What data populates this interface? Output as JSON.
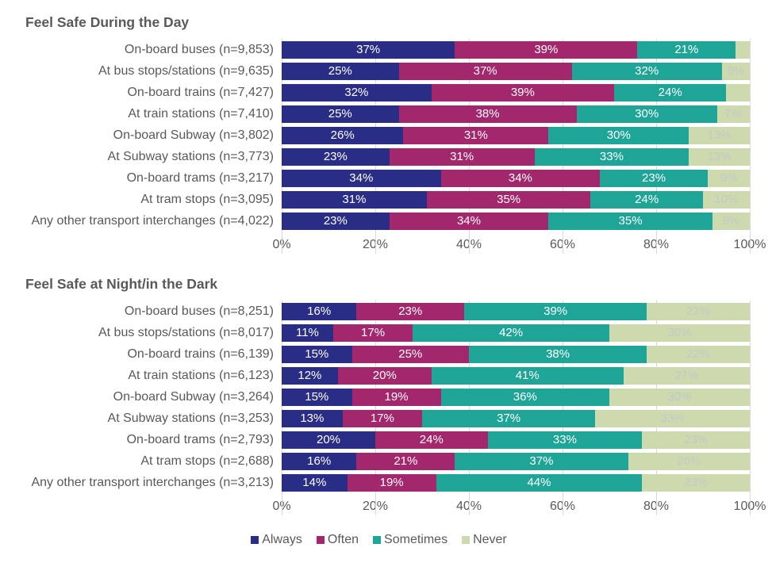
{
  "colors": {
    "always": "#2a2d85",
    "often": "#a3276c",
    "sometimes": "#1ea597",
    "never": "#cddaae",
    "text_light": "#ffffff",
    "text_muted": "#c7c7c7",
    "axis_text": "#595959",
    "grid": "#d9d9d9",
    "background": "#ffffff"
  },
  "typography": {
    "title_fontsize_pt": 13,
    "label_fontsize_pt": 12,
    "value_fontsize_pt": 11
  },
  "axis": {
    "xlim": [
      0,
      100
    ],
    "ticks": [
      0,
      20,
      40,
      60,
      80,
      100
    ],
    "tick_labels": [
      "0%",
      "20%",
      "40%",
      "60%",
      "80%",
      "100%"
    ]
  },
  "legend": [
    {
      "key": "always",
      "label": "Always"
    },
    {
      "key": "often",
      "label": "Often"
    },
    {
      "key": "sometimes",
      "label": "Sometimes"
    },
    {
      "key": "never",
      "label": "Never"
    }
  ],
  "label_threshold": 6,
  "charts": [
    {
      "title": "Feel Safe During the Day",
      "type": "stacked_bar_horizontal",
      "rows": [
        {
          "label": "On-board buses (n=9,853)",
          "values": {
            "always": 37,
            "often": 39,
            "sometimes": 21,
            "never": 3
          }
        },
        {
          "label": "At bus stops/stations (n=9,635)",
          "values": {
            "always": 25,
            "often": 37,
            "sometimes": 32,
            "never": 6
          }
        },
        {
          "label": "On-board trains (n=7,427)",
          "values": {
            "always": 32,
            "often": 39,
            "sometimes": 24,
            "never": 5
          }
        },
        {
          "label": "At train stations (n=7,410)",
          "values": {
            "always": 25,
            "often": 38,
            "sometimes": 30,
            "never": 7
          }
        },
        {
          "label": "On-board Subway (n=3,802)",
          "values": {
            "always": 26,
            "often": 31,
            "sometimes": 30,
            "never": 13
          }
        },
        {
          "label": "At Subway stations (n=3,773)",
          "values": {
            "always": 23,
            "often": 31,
            "sometimes": 33,
            "never": 13
          }
        },
        {
          "label": "On-board trams (n=3,217)",
          "values": {
            "always": 34,
            "often": 34,
            "sometimes": 23,
            "never": 9
          }
        },
        {
          "label": "At tram stops (n=3,095)",
          "values": {
            "always": 31,
            "often": 35,
            "sometimes": 24,
            "never": 10
          }
        },
        {
          "label": "Any other transport interchanges (n=4,022)",
          "values": {
            "always": 23,
            "often": 34,
            "sometimes": 35,
            "never": 8
          }
        }
      ]
    },
    {
      "title": "Feel Safe at Night/in the Dark",
      "type": "stacked_bar_horizontal",
      "rows": [
        {
          "label": "On-board buses (n=8,251)",
          "values": {
            "always": 16,
            "often": 23,
            "sometimes": 39,
            "never": 22
          }
        },
        {
          "label": "At bus stops/stations (n=8,017)",
          "values": {
            "always": 11,
            "often": 17,
            "sometimes": 42,
            "never": 30
          }
        },
        {
          "label": "On-board trains (n=6,139)",
          "values": {
            "always": 15,
            "often": 25,
            "sometimes": 38,
            "never": 22
          }
        },
        {
          "label": "At train stations (n=6,123)",
          "values": {
            "always": 12,
            "often": 20,
            "sometimes": 41,
            "never": 27
          }
        },
        {
          "label": "On-board Subway (n=3,264)",
          "values": {
            "always": 15,
            "often": 19,
            "sometimes": 36,
            "never": 30
          }
        },
        {
          "label": "At Subway stations (n=3,253)",
          "values": {
            "always": 13,
            "often": 17,
            "sometimes": 37,
            "never": 33
          }
        },
        {
          "label": "On-board trams (n=2,793)",
          "values": {
            "always": 20,
            "often": 24,
            "sometimes": 33,
            "never": 23
          }
        },
        {
          "label": "At tram stops (n=2,688)",
          "values": {
            "always": 16,
            "often": 21,
            "sometimes": 37,
            "never": 26
          }
        },
        {
          "label": "Any other transport interchanges (n=3,213)",
          "values": {
            "always": 14,
            "often": 19,
            "sometimes": 44,
            "never": 23
          }
        }
      ]
    }
  ]
}
